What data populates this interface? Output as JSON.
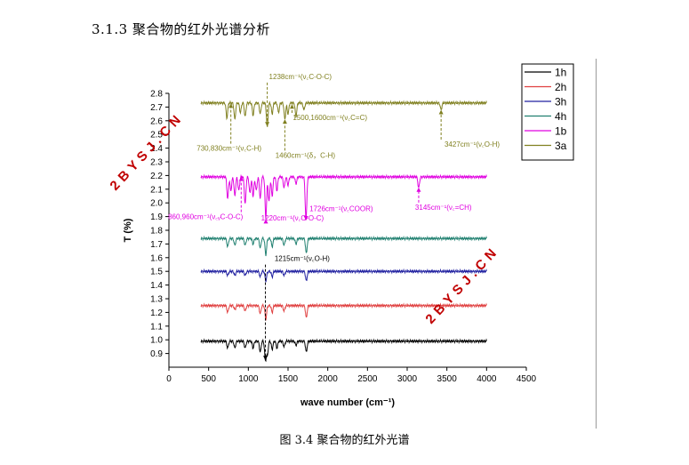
{
  "page": {
    "section_heading": "3.1.3 聚合物的红外光谱分析",
    "figure_caption": "图 3.4 聚合物的红外光谱",
    "watermarks": [
      "2BYSJ.CN",
      "2BYSJ.CN"
    ]
  },
  "chart_data": {
    "type": "line",
    "title": "",
    "xlabel": "wave number (cm⁻¹)",
    "ylabel": "T (%)",
    "xlim": [
      0,
      4500
    ],
    "ylim": [
      0.8,
      2.8
    ],
    "xticks": [
      0,
      500,
      1000,
      1500,
      2000,
      2500,
      3000,
      3500,
      4000,
      4500
    ],
    "yticks": [
      0.9,
      1.0,
      1.1,
      1.2,
      1.3,
      1.4,
      1.5,
      1.6,
      1.7,
      1.8,
      1.9,
      2.0,
      2.1,
      2.2,
      2.3,
      2.4,
      2.5,
      2.6,
      2.7,
      2.8
    ],
    "grid": false,
    "legend_position": "top-right",
    "series": [
      {
        "name": "1h",
        "color": "#000000",
        "baseline": 0.99,
        "x_start": 400,
        "bands": [
          [
            740,
            0.05
          ],
          [
            830,
            0.05
          ],
          [
            960,
            0.05
          ],
          [
            1060,
            0.05
          ],
          [
            1150,
            0.08
          ],
          [
            1215,
            0.14
          ],
          [
            1240,
            0.1
          ],
          [
            1300,
            0.06
          ],
          [
            1360,
            0.05
          ],
          [
            1450,
            0.04
          ],
          [
            1600,
            0.03
          ],
          [
            1730,
            0.08
          ]
        ]
      },
      {
        "name": "2h",
        "color": "#e04040",
        "baseline": 1.25,
        "x_start": 400,
        "bands": [
          [
            740,
            0.05
          ],
          [
            830,
            0.03
          ],
          [
            960,
            0.04
          ],
          [
            1150,
            0.06
          ],
          [
            1220,
            0.1
          ],
          [
            1300,
            0.05
          ],
          [
            1450,
            0.04
          ],
          [
            1730,
            0.09
          ]
        ]
      },
      {
        "name": "3h",
        "color": "#2020a0",
        "baseline": 1.5,
        "x_start": 400,
        "bands": [
          [
            740,
            0.03
          ],
          [
            830,
            0.03
          ],
          [
            960,
            0.03
          ],
          [
            1150,
            0.04
          ],
          [
            1220,
            0.07
          ],
          [
            1300,
            0.04
          ],
          [
            1450,
            0.03
          ],
          [
            1730,
            0.07
          ]
        ]
      },
      {
        "name": "4h",
        "color": "#208070",
        "baseline": 1.74,
        "x_start": 400,
        "bands": [
          [
            740,
            0.06
          ],
          [
            830,
            0.05
          ],
          [
            960,
            0.05
          ],
          [
            1060,
            0.04
          ],
          [
            1150,
            0.07
          ],
          [
            1220,
            0.12
          ],
          [
            1300,
            0.06
          ],
          [
            1450,
            0.05
          ],
          [
            1600,
            0.04
          ],
          [
            1730,
            0.11
          ]
        ]
      },
      {
        "name": "1b",
        "color": "#e000e0",
        "baseline": 2.19,
        "x_start": 400,
        "bands": [
          [
            740,
            0.16
          ],
          [
            780,
            0.1
          ],
          [
            830,
            0.14
          ],
          [
            880,
            0.1
          ],
          [
            960,
            0.2
          ],
          [
            1020,
            0.12
          ],
          [
            1060,
            0.14
          ],
          [
            1100,
            0.1
          ],
          [
            1150,
            0.16
          ],
          [
            1220,
            0.3
          ],
          [
            1260,
            0.18
          ],
          [
            1300,
            0.14
          ],
          [
            1360,
            0.1
          ],
          [
            1450,
            0.08
          ],
          [
            1500,
            0.06
          ],
          [
            1600,
            0.05
          ],
          [
            1726,
            0.32
          ],
          [
            3145,
            0.08
          ]
        ]
      },
      {
        "name": "3a",
        "color": "#808020",
        "baseline": 2.73,
        "x_start": 400,
        "bands": [
          [
            730,
            0.11
          ],
          [
            830,
            0.12
          ],
          [
            900,
            0.07
          ],
          [
            960,
            0.1
          ],
          [
            1060,
            0.09
          ],
          [
            1150,
            0.08
          ],
          [
            1238,
            0.18
          ],
          [
            1300,
            0.08
          ],
          [
            1380,
            0.07
          ],
          [
            1460,
            0.12
          ],
          [
            1500,
            0.08
          ],
          [
            1600,
            0.1
          ],
          [
            1700,
            0.05
          ],
          [
            3427,
            0.05
          ]
        ]
      }
    ],
    "annotations": [
      {
        "text": "1238cm⁻¹(ν꜀C-O-C)",
        "series": "3a",
        "at_x": 1238,
        "label_x": 1260,
        "label_y": 2.905,
        "color": "#808020"
      },
      {
        "text": "1500,1600cm⁻¹(ν꜀C=C)",
        "series": "3a",
        "at_x": 1550,
        "label_x": 1560,
        "label_y": 2.605,
        "color": "#808020"
      },
      {
        "text": "730,830cm⁻¹(ν꜀C-H)",
        "series": "3a",
        "at_x": 780,
        "label_x": 350,
        "label_y": 2.38,
        "color": "#808020"
      },
      {
        "text": "1460cm⁻¹(δ，C-H)",
        "series": "3a",
        "at_x": 1460,
        "label_x": 1340,
        "label_y": 2.33,
        "color": "#808020"
      },
      {
        "text": "3427cm⁻¹(ν꜀O-H)",
        "series": "3a",
        "at_x": 3427,
        "label_x": 3470,
        "label_y": 2.41,
        "color": "#808020"
      },
      {
        "text": "860,960cm⁻¹(ν꜀ᵧC-O-C)",
        "series": "1b",
        "at_x": 910,
        "label_x": -10,
        "label_y": 1.88,
        "color": "#e000e0"
      },
      {
        "text": "1220cm⁻¹(ν꜀C-O-C)",
        "series": "1b",
        "at_x": 1220,
        "label_x": 1160,
        "label_y": 1.87,
        "color": "#e000e0"
      },
      {
        "text": "1726cm⁻¹(ν꜀COOR)",
        "series": "1b",
        "at_x": 1726,
        "label_x": 1770,
        "label_y": 1.94,
        "color": "#e000e0"
      },
      {
        "text": "3145cm⁻¹(ν꜀=CH)",
        "series": "1b",
        "at_x": 3145,
        "label_x": 3100,
        "label_y": 1.95,
        "color": "#e000e0"
      },
      {
        "text": "1215cm⁻¹(ν꜀O-H)",
        "series": "1h",
        "at_x": 1215,
        "label_x": 1330,
        "label_y": 1.575,
        "color": "#000000"
      }
    ]
  }
}
